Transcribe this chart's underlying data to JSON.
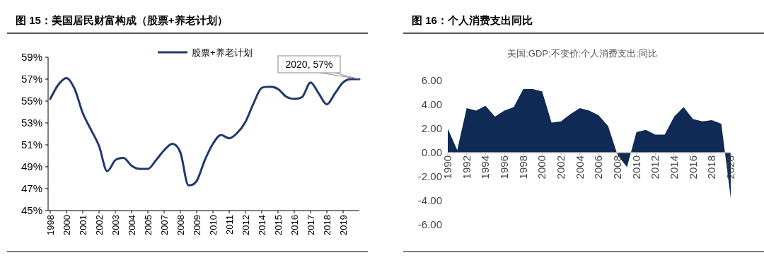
{
  "chart_data": [
    {
      "type": "line",
      "title": "图 15：美国居民财富构成（股票+养老计划）",
      "categories": [
        "1998",
        null,
        "2000",
        null,
        "2001",
        null,
        "2002",
        null,
        "2003",
        null,
        "2004",
        null,
        "2005",
        null,
        "2007",
        null,
        "2008",
        null,
        "2009",
        null,
        "2010",
        null,
        "2011",
        null,
        "2012",
        null,
        "2014",
        null,
        "2015",
        null,
        "2016",
        null,
        "2017",
        null,
        "2018",
        null,
        "2019",
        null,
        null
      ],
      "series": [
        {
          "name": "股票+养老计划",
          "color": "#1f3a6b",
          "values": [
            55.2,
            56.5,
            57.1,
            56.1,
            53.9,
            52.4,
            50.9,
            48.6,
            49.6,
            49.8,
            49.1,
            48.8,
            48.8,
            49.6,
            50.5,
            51.1,
            50.3,
            47.3,
            47.7,
            49.6,
            51.1,
            51.9,
            51.6,
            52.1,
            53.1,
            54.8,
            56.2,
            56.3,
            56.1,
            55.4,
            55.2,
            55.4,
            56.7,
            55.7,
            54.7,
            55.7,
            56.7,
            57.0,
            57
          ]
        }
      ],
      "ylim": [
        45,
        59
      ],
      "yticks": [
        {
          "value": 45,
          "label": "45%"
        },
        {
          "value": 47,
          "label": "47%"
        },
        {
          "value": 49,
          "label": "49%"
        },
        {
          "value": 51,
          "label": "51%"
        },
        {
          "value": 53,
          "label": "53%"
        },
        {
          "value": 55,
          "label": "55%"
        },
        {
          "value": 57,
          "label": "57%"
        },
        {
          "value": 59,
          "label": "59%"
        }
      ],
      "legend": "top",
      "annotations": [
        {
          "text": "2020, 57%",
          "y": 57
        }
      ]
    },
    {
      "type": "area",
      "title": "图 16：个人消费支出同比",
      "subtitle": "美国:GDP:不变价:个人消费支出:同比",
      "x": [
        1990,
        1991,
        1992,
        1993,
        1994,
        1995,
        1996,
        1997,
        1998,
        1999,
        2000,
        2001,
        2002,
        2003,
        2004,
        2005,
        2006,
        2007,
        2008,
        2009,
        2010,
        2011,
        2012,
        2013,
        2014,
        2015,
        2016,
        2017,
        2018,
        2019,
        2020
      ],
      "series": [
        {
          "color": "#0f2a55",
          "values": [
            2.0,
            0.2,
            3.7,
            3.5,
            3.9,
            3.0,
            3.5,
            3.8,
            5.3,
            5.3,
            5.1,
            2.5,
            2.6,
            3.2,
            3.7,
            3.5,
            3.1,
            2.2,
            -0.2,
            -1.2,
            1.7,
            1.9,
            1.5,
            1.5,
            3.0,
            3.8,
            2.8,
            2.6,
            2.7,
            2.4,
            -3.8
          ]
        }
      ],
      "xlim": [
        1990,
        2020
      ],
      "xticks": [
        1990,
        1992,
        1994,
        1996,
        1998,
        2000,
        2002,
        2004,
        2006,
        2008,
        2010,
        2012,
        2014,
        2016,
        2018,
        2020
      ],
      "ylim": [
        -6,
        6
      ],
      "yticks": [
        {
          "value": -6,
          "label": "-6.00"
        },
        {
          "value": -4,
          "label": "-4.00"
        },
        {
          "value": -2,
          "label": "-2.00"
        },
        {
          "value": 0,
          "label": "0.00"
        },
        {
          "value": 2,
          "label": "2.00"
        },
        {
          "value": 4,
          "label": "4.00"
        },
        {
          "value": 6,
          "label": "6.00"
        }
      ]
    }
  ]
}
